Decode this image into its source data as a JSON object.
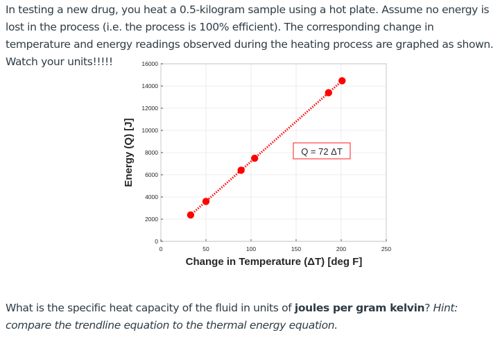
{
  "problem": {
    "intro": "In testing a new drug, you heat a 0.5-kilogram sample using a hot plate. Assume no energy is lost in the process (i.e. the process is 100% efficient). The corresponding change in temperature and energy readings observed during the heating process are graphed as shown. Watch your units!!!!!",
    "question_prefix": "What is the specific heat capacity of the fluid in units of ",
    "question_units": "joules per gram kelvin",
    "question_mark": "?",
    "hint": " Hint: compare the trendline equation to the thermal energy equation."
  },
  "chart_data": {
    "type": "scatter",
    "xlabel": "Change in Temperature (ΔT) [deg F]",
    "ylabel": "Energy (Q) [J]",
    "xlim": [
      0,
      250
    ],
    "ylim": [
      0,
      16000
    ],
    "x_ticks": [
      0,
      50,
      100,
      150,
      200,
      250
    ],
    "y_ticks": [
      0,
      2000,
      4000,
      6000,
      8000,
      10000,
      12000,
      14000,
      16000
    ],
    "grid": true,
    "series": [
      {
        "marker_color": "#ff0000",
        "x": [
          33,
          50,
          89,
          104,
          186,
          201
        ],
        "y": [
          2376,
          3600,
          6408,
          7488,
          13392,
          14472
        ]
      }
    ],
    "trendline": {
      "x": [
        33,
        201
      ],
      "style": "dotted",
      "color": "#ff0000",
      "slope": 72
    },
    "annotation": {
      "text": "Q = 72 ΔT",
      "border_color": "#ff0000"
    }
  }
}
